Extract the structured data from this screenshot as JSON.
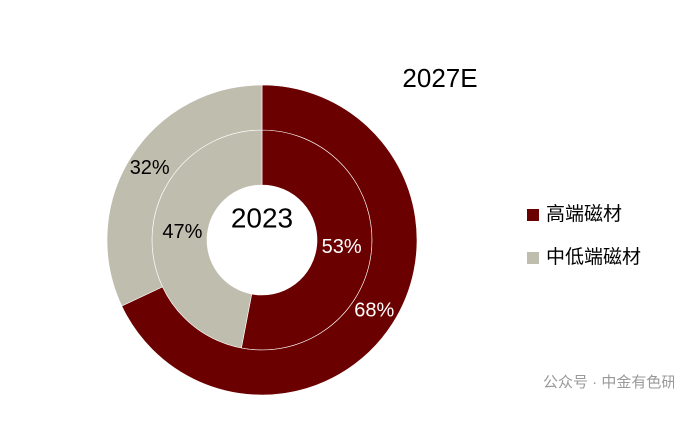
{
  "chart_data": {
    "type": "donut",
    "categories": [
      "高端磁材",
      "中低端磁材"
    ],
    "colors": [
      "#6b0000",
      "#bfbdae"
    ],
    "series": [
      {
        "name": "2023",
        "values": [
          53,
          47
        ],
        "value_labels": [
          "53%",
          "47%"
        ]
      },
      {
        "name": "2027E",
        "values": [
          68,
          32
        ],
        "value_labels": [
          "68%",
          "32%"
        ]
      }
    ]
  },
  "watermark": "公众号 · 中金有色研究"
}
